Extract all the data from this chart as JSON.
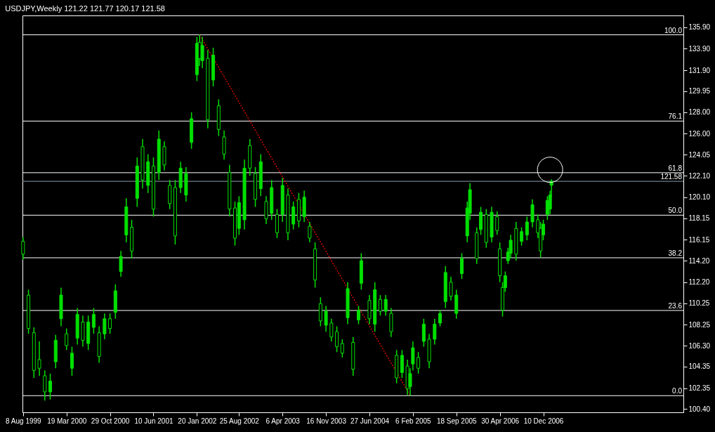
{
  "chart_data": {
    "type": "candlestick",
    "title": "USDJPY,Weekly  121.22 121.77 120.17 121.58",
    "xlim": [
      "1999-08-05",
      "2008-12-01"
    ],
    "xticks": [
      {
        "value": "1999-08-08",
        "label": "8 Aug 1999"
      },
      {
        "value": "2000-03-19",
        "label": "19 Mar 2000"
      },
      {
        "value": "2000-10-29",
        "label": "29 Oct 2000"
      },
      {
        "value": "2001-06-10",
        "label": "10 Jun 2001"
      },
      {
        "value": "2002-01-20",
        "label": "20 Jan 2002"
      },
      {
        "value": "2002-08-25",
        "label": "25 Aug 2002"
      },
      {
        "value": "2003-04-06",
        "label": "6 Apr 2003"
      },
      {
        "value": "2003-11-16",
        "label": "16 Nov 2003"
      },
      {
        "value": "2004-06-27",
        "label": "27 Jun 2004"
      },
      {
        "value": "2005-02-06",
        "label": "6 Feb 2005"
      },
      {
        "value": "2005-09-18",
        "label": "18 Sep 2005"
      },
      {
        "value": "2006-04-30",
        "label": "30 Apr 2006"
      },
      {
        "value": "2006-12-10",
        "label": "10 Dec 2006"
      }
    ],
    "ylim": [
      100.1,
      137.0
    ],
    "yticks": [
      {
        "value": 100.4,
        "label": "100.40"
      },
      {
        "value": 102.35,
        "label": "102.35"
      },
      {
        "value": 104.35,
        "label": "104.35"
      },
      {
        "value": 106.3,
        "label": "106.30"
      },
      {
        "value": 108.25,
        "label": "108.25"
      },
      {
        "value": 110.25,
        "label": "110.25"
      },
      {
        "value": 112.2,
        "label": "112.20"
      },
      {
        "value": 114.2,
        "label": "114.20"
      },
      {
        "value": 116.15,
        "label": "116.15"
      },
      {
        "value": 118.15,
        "label": "118.15"
      },
      {
        "value": 120.1,
        "label": "120.10"
      },
      {
        "value": 122.1,
        "label": "122.10"
      },
      {
        "value": 124.05,
        "label": "124.05"
      },
      {
        "value": 126.0,
        "label": "126.00"
      },
      {
        "value": 128.0,
        "label": "128.00"
      },
      {
        "value": 129.95,
        "label": "129.95"
      },
      {
        "value": 131.9,
        "label": "131.90"
      },
      {
        "value": 133.9,
        "label": "133.90"
      },
      {
        "value": 135.9,
        "label": "135.90"
      }
    ],
    "ref_lines": [
      {
        "axis": "y",
        "value": 135.2,
        "color": "#ffffff"
      },
      {
        "axis": "y",
        "value": 127.18,
        "color": "#ffffff"
      },
      {
        "axis": "y",
        "value": 122.38,
        "color": "#ffffff"
      },
      {
        "axis": "y",
        "value": 118.43,
        "color": "#ffffff"
      },
      {
        "axis": "y",
        "value": 114.47,
        "color": "#ffffff"
      },
      {
        "axis": "y",
        "value": 109.57,
        "color": "#ffffff"
      },
      {
        "axis": "y",
        "value": 101.65,
        "color": "#ffffff"
      },
      {
        "axis": "y",
        "value": 121.58,
        "label": "121.58",
        "color": "#8c9cac"
      }
    ],
    "annotations": [
      {
        "text": "100.0",
        "y": 135.2
      },
      {
        "text": "76.1",
        "y": 127.18
      },
      {
        "text": "61.8",
        "y": 122.38
      },
      {
        "text": "50.0",
        "y": 118.43
      },
      {
        "text": "38.2",
        "y": 114.47
      },
      {
        "text": "23.6",
        "y": 109.57
      },
      {
        "text": "0.0",
        "y": 101.65
      }
    ],
    "series": [
      {
        "type": "line",
        "color": "#ff0000",
        "line_style": "dotted",
        "x": [
          "2002-02-03",
          "2005-01-23"
        ],
        "values": [
          135.2,
          101.65
        ]
      },
      {
        "color": "#00e000",
        "x": [
          "1999-08-08",
          "1999-09-05",
          "1999-10-03",
          "1999-10-31",
          "1999-11-28",
          "1999-12-26",
          "2000-01-23",
          "2000-02-20",
          "2000-03-19",
          "2000-04-16",
          "2000-05-14",
          "2000-06-11",
          "2000-07-09",
          "2000-08-06",
          "2000-09-03",
          "2000-10-01",
          "2000-10-29",
          "2000-11-26",
          "2000-12-24",
          "2001-01-21",
          "2001-02-18",
          "2001-03-18",
          "2001-04-15",
          "2001-05-13",
          "2001-06-10",
          "2001-07-08",
          "2001-08-05",
          "2001-09-02",
          "2001-09-30",
          "2001-10-28",
          "2001-11-25",
          "2001-12-23",
          "2002-01-20",
          "2002-02-03",
          "2002-02-17",
          "2002-03-17",
          "2002-04-14",
          "2002-05-12",
          "2002-06-09",
          "2002-07-07",
          "2002-08-04",
          "2002-08-25",
          "2002-09-22",
          "2002-10-20",
          "2002-11-17",
          "2002-12-15",
          "2003-01-12",
          "2003-02-09",
          "2003-03-09",
          "2003-04-06",
          "2003-05-04",
          "2003-06-01",
          "2003-06-29",
          "2003-07-27",
          "2003-08-24",
          "2003-09-21",
          "2003-10-19",
          "2003-11-16",
          "2003-12-14",
          "2004-01-11",
          "2004-02-08",
          "2004-03-07",
          "2004-04-04",
          "2004-05-02",
          "2004-05-16",
          "2004-06-27",
          "2004-07-25",
          "2004-08-22",
          "2004-09-19",
          "2004-10-17",
          "2004-11-14",
          "2004-12-12",
          "2005-01-09",
          "2005-01-23",
          "2005-02-06",
          "2005-03-06",
          "2005-04-03",
          "2005-05-01",
          "2005-05-29",
          "2005-06-26",
          "2005-07-24",
          "2005-08-21",
          "2005-09-18",
          "2005-10-16",
          "2005-11-13",
          "2005-11-27",
          "2006-01-01",
          "2006-01-22",
          "2006-02-19",
          "2006-03-19",
          "2006-04-16",
          "2006-04-30",
          "2006-05-14",
          "2006-05-28",
          "2006-06-11",
          "2006-06-25",
          "2006-07-23",
          "2006-08-20",
          "2006-09-17",
          "2006-10-15",
          "2006-11-12",
          "2006-11-26",
          "2006-12-10",
          "2006-12-31",
          "2007-01-14",
          "2007-01-21"
        ],
        "ohlc": [
          [
            116.0,
            116.4,
            114.3,
            114.8
          ],
          [
            111.0,
            111.5,
            107.4,
            107.9
          ],
          [
            107.5,
            108.0,
            103.3,
            104.0
          ],
          [
            105.0,
            106.7,
            103.5,
            104.2
          ],
          [
            103.5,
            104.0,
            101.2,
            102.0
          ],
          [
            102.0,
            103.7,
            101.3,
            103.0
          ],
          [
            104.8,
            107.3,
            104.2,
            106.8
          ],
          [
            108.8,
            111.7,
            108.1,
            111.0
          ],
          [
            107.4,
            107.9,
            105.9,
            106.3
          ],
          [
            104.2,
            106.2,
            103.5,
            105.6
          ],
          [
            107.0,
            109.8,
            106.4,
            109.2
          ],
          [
            108.5,
            109.1,
            106.2,
            106.8
          ],
          [
            106.5,
            109.1,
            105.9,
            108.5
          ],
          [
            108.0,
            109.8,
            107.4,
            109.2
          ],
          [
            107.5,
            108.1,
            104.7,
            105.3
          ],
          [
            107.4,
            109.3,
            106.9,
            108.8
          ],
          [
            108.8,
            109.3,
            107.4,
            107.9
          ],
          [
            109.4,
            112.0,
            108.8,
            111.4
          ],
          [
            113.2,
            115.1,
            112.7,
            114.6
          ],
          [
            116.6,
            120.0,
            115.9,
            119.2
          ],
          [
            117.3,
            118.0,
            114.4,
            115.1
          ],
          [
            120.0,
            123.8,
            119.2,
            123.0
          ],
          [
            124.8,
            125.5,
            120.9,
            121.7
          ],
          [
            121.2,
            124.1,
            120.5,
            123.4
          ],
          [
            123.0,
            123.8,
            118.3,
            119.0
          ],
          [
            122.4,
            126.3,
            121.7,
            125.5
          ],
          [
            124.8,
            125.3,
            122.6,
            123.1
          ],
          [
            121.2,
            121.7,
            119.0,
            119.5
          ],
          [
            121.0,
            121.7,
            115.7,
            116.5
          ],
          [
            121.0,
            123.4,
            120.5,
            122.8
          ],
          [
            120.3,
            122.9,
            119.7,
            122.3
          ],
          [
            125.2,
            128.0,
            124.6,
            127.4
          ],
          [
            131.5,
            135.0,
            130.9,
            134.4
          ],
          [
            134.5,
            135.2,
            132.3,
            133.0
          ],
          [
            132.8,
            135.0,
            132.1,
            134.2
          ],
          [
            133.0,
            133.8,
            126.5,
            127.3
          ],
          [
            131.0,
            134.0,
            130.4,
            133.3
          ],
          [
            128.6,
            129.2,
            125.8,
            126.4
          ],
          [
            125.7,
            126.3,
            123.6,
            124.1
          ],
          [
            122.4,
            123.1,
            118.3,
            119.0
          ],
          [
            119.1,
            119.7,
            115.6,
            116.3
          ],
          [
            117.2,
            120.2,
            116.6,
            119.6
          ],
          [
            118.0,
            123.6,
            117.1,
            122.8
          ],
          [
            124.9,
            125.5,
            122.1,
            122.8
          ],
          [
            122.3,
            122.9,
            119.2,
            119.9
          ],
          [
            120.9,
            124.1,
            120.2,
            123.4
          ],
          [
            119.7,
            120.2,
            117.6,
            118.1
          ],
          [
            118.6,
            121.7,
            118.0,
            121.0
          ],
          [
            118.5,
            119.0,
            116.3,
            116.8
          ],
          [
            118.5,
            121.9,
            117.8,
            121.2
          ],
          [
            120.3,
            120.9,
            116.1,
            116.8
          ],
          [
            117.6,
            119.7,
            117.1,
            119.2
          ],
          [
            119.9,
            120.5,
            117.3,
            117.9
          ],
          [
            118.3,
            120.7,
            117.8,
            120.1
          ],
          [
            117.4,
            117.8,
            115.9,
            116.3
          ],
          [
            115.3,
            115.9,
            111.7,
            112.4
          ],
          [
            110.2,
            110.8,
            108.1,
            108.6
          ],
          [
            108.2,
            110.0,
            107.6,
            109.5
          ],
          [
            108.4,
            108.8,
            106.7,
            107.1
          ],
          [
            107.6,
            108.1,
            105.7,
            106.2
          ],
          [
            106.5,
            106.9,
            105.2,
            105.6
          ],
          [
            108.9,
            112.2,
            108.3,
            111.6
          ],
          [
            106.6,
            107.1,
            103.5,
            104.1
          ],
          [
            108.7,
            110.0,
            108.3,
            109.6
          ],
          [
            112.1,
            114.9,
            111.5,
            114.2
          ],
          [
            110.5,
            111.0,
            108.3,
            108.8
          ],
          [
            108.3,
            112.2,
            107.6,
            111.5
          ],
          [
            110.6,
            111.0,
            109.1,
            109.5
          ],
          [
            109.5,
            111.0,
            109.1,
            110.6
          ],
          [
            109.3,
            109.8,
            107.1,
            107.6
          ],
          [
            105.4,
            105.9,
            102.8,
            103.3
          ],
          [
            103.8,
            105.9,
            103.3,
            105.4
          ],
          [
            104.4,
            105.0,
            101.7,
            102.3
          ],
          [
            102.5,
            104.2,
            101.65,
            103.7
          ],
          [
            104.6,
            106.7,
            104.0,
            106.1
          ],
          [
            105.2,
            105.7,
            103.7,
            104.2
          ],
          [
            106.7,
            108.8,
            106.2,
            108.3
          ],
          [
            106.9,
            107.4,
            104.2,
            104.8
          ],
          [
            106.9,
            108.8,
            106.4,
            108.3
          ],
          [
            108.4,
            109.6,
            108.1,
            109.3
          ],
          [
            110.4,
            113.7,
            109.8,
            113.1
          ],
          [
            112.2,
            112.7,
            110.5,
            110.9
          ],
          [
            109.3,
            111.5,
            108.8,
            111.0
          ],
          [
            113.0,
            114.9,
            112.5,
            114.4
          ],
          [
            116.5,
            119.7,
            115.9,
            119.1
          ],
          [
            118.6,
            121.4,
            118.0,
            120.8
          ],
          [
            116.8,
            117.3,
            113.9,
            114.4
          ],
          [
            117.1,
            119.2,
            116.6,
            118.7
          ],
          [
            118.5,
            119.0,
            115.4,
            115.9
          ],
          [
            116.4,
            119.2,
            115.9,
            118.7
          ],
          [
            118.3,
            118.8,
            116.6,
            117.0
          ],
          [
            115.3,
            115.9,
            112.2,
            112.8
          ],
          [
            111.7,
            112.2,
            109.0,
            109.6
          ],
          [
            111.7,
            113.2,
            111.3,
            112.8
          ],
          [
            114.2,
            115.4,
            113.9,
            115.0
          ],
          [
            114.9,
            116.6,
            114.4,
            116.1
          ],
          [
            117.2,
            117.8,
            114.2,
            114.8
          ],
          [
            116.0,
            117.3,
            115.6,
            116.9
          ],
          [
            116.6,
            118.3,
            116.1,
            117.8
          ],
          [
            117.8,
            119.9,
            117.3,
            119.4
          ],
          [
            118.0,
            118.5,
            116.3,
            116.8
          ],
          [
            117.2,
            117.8,
            114.5,
            115.1
          ],
          [
            116.6,
            118.0,
            116.1,
            117.6
          ],
          [
            118.5,
            120.2,
            118.0,
            119.8
          ],
          [
            119.0,
            120.7,
            118.5,
            120.3
          ],
          [
            121.22,
            121.77,
            120.17,
            121.58
          ]
        ]
      }
    ]
  }
}
